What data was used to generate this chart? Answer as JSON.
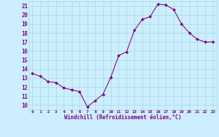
{
  "x": [
    0,
    1,
    2,
    3,
    4,
    5,
    6,
    7,
    8,
    9,
    10,
    11,
    12,
    13,
    14,
    15,
    16,
    17,
    18,
    19,
    20,
    21,
    22,
    23
  ],
  "y": [
    13.5,
    13.2,
    12.6,
    12.5,
    11.9,
    11.7,
    11.5,
    9.8,
    10.5,
    11.2,
    13.1,
    15.5,
    15.9,
    18.3,
    19.5,
    19.8,
    21.2,
    21.1,
    20.6,
    19.0,
    18.0,
    17.3,
    17.0,
    17.0
  ],
  "line_color": "#800080",
  "marker": "D",
  "marker_size": 2.0,
  "bg_color": "#cceeff",
  "grid_color": "#aadddd",
  "xlabel": "Windchill (Refroidissement éolien,°C)",
  "xlabel_color": "#800080",
  "tick_color": "#800080",
  "ylim": [
    9.5,
    21.5
  ],
  "xlim": [
    -0.5,
    23.5
  ],
  "yticks": [
    10,
    11,
    12,
    13,
    14,
    15,
    16,
    17,
    18,
    19,
    20,
    21
  ],
  "xticks": [
    0,
    1,
    2,
    3,
    4,
    5,
    6,
    7,
    8,
    9,
    10,
    11,
    12,
    13,
    14,
    15,
    16,
    17,
    18,
    19,
    20,
    21,
    22,
    23
  ],
  "xtick_labels": [
    "0",
    "1",
    "2",
    "3",
    "4",
    "5",
    "6",
    "7",
    "8",
    "9",
    "10",
    "11",
    "12",
    "13",
    "14",
    "15",
    "16",
    "17",
    "18",
    "19",
    "20",
    "21",
    "22",
    "23"
  ]
}
